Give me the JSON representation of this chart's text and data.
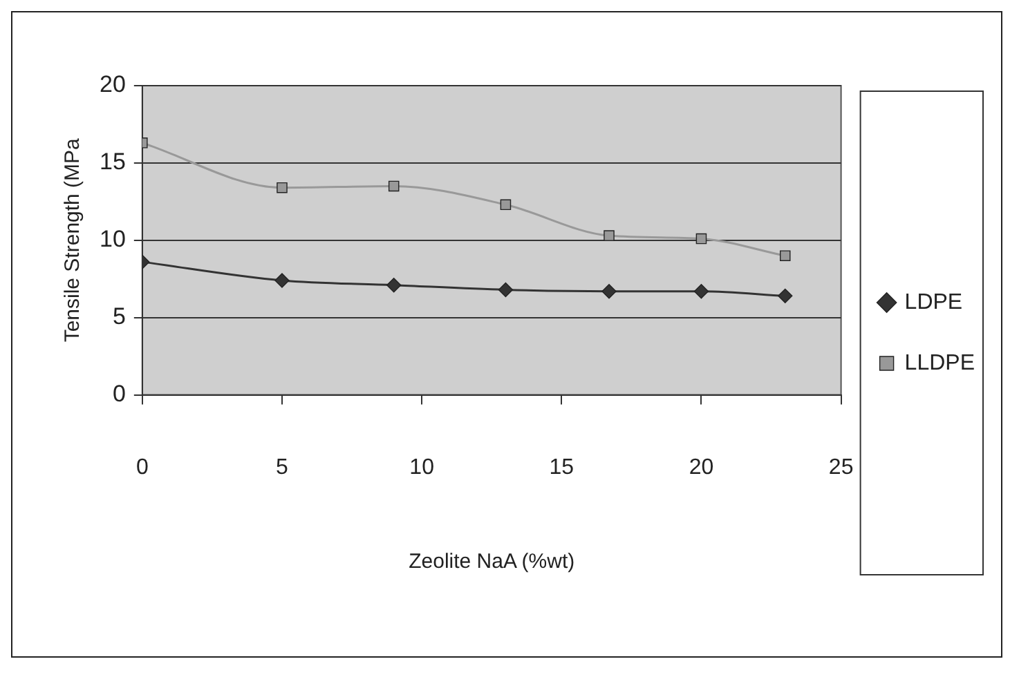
{
  "chart_data": {
    "type": "line",
    "xlabel": "Zeolite NaA (%wt)",
    "ylabel": "Tensile Strength (MPa",
    "x": [
      0,
      5,
      9,
      13,
      16.7,
      20,
      23
    ],
    "series": [
      {
        "name": "LDPE",
        "color": "#333333",
        "marker": "diamond",
        "values": [
          8.6,
          7.4,
          7.1,
          6.8,
          6.7,
          6.7,
          6.4
        ]
      },
      {
        "name": "LLDPE",
        "color": "#999999",
        "marker": "square",
        "values": [
          16.3,
          13.4,
          13.5,
          12.3,
          10.3,
          10.1,
          9.0
        ]
      }
    ],
    "xlim": [
      0,
      25
    ],
    "xticks": [
      0,
      5,
      10,
      15,
      20,
      25
    ],
    "ylim": [
      0,
      20
    ],
    "yticks": [
      0,
      5,
      10,
      15,
      20
    ],
    "grid": "y",
    "legend": "right",
    "line_style": "solid"
  }
}
